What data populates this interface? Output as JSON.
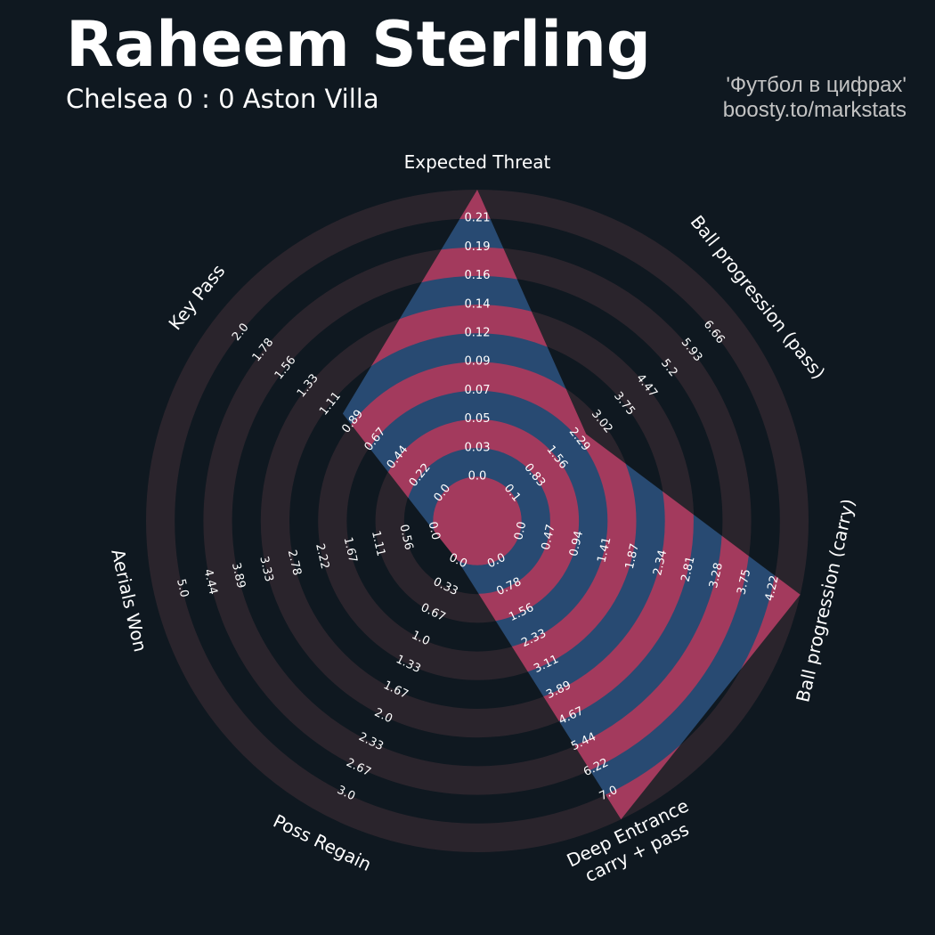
{
  "header": {
    "title": "Raheem Sterling",
    "subtitle": "Chelsea 0 : 0 Aston Villa",
    "credit_line1": "'Футбол в цифрах'",
    "credit_line2": "boosty.to/markstats"
  },
  "colors": {
    "background": "#0f1820",
    "ring_dark": "#2a242c",
    "fill_blue": "#284a72",
    "fill_red": "#a33a5d",
    "text": "#ffffff"
  },
  "chart_data": {
    "type": "radar",
    "title": "Raheem Sterling",
    "subtitle": "Chelsea 0 : 0 Aston Villa",
    "rings": 10,
    "axes": [
      {
        "label": "Expected Threat",
        "min": 0.0,
        "max": 0.21,
        "value": 0.21,
        "ticks": [
          "0.0",
          "0.03",
          "0.05",
          "0.07",
          "0.09",
          "0.12",
          "0.14",
          "0.16",
          "0.19",
          "0.21"
        ]
      },
      {
        "label": "Ball progression (pass)",
        "min": 0.0,
        "max": 6.66,
        "value": 2.2,
        "ticks": [
          "0.1",
          "0.83",
          "1.56",
          "2.29",
          "3.02",
          "3.75",
          "4.47",
          "5.2",
          "5.93",
          "6.66"
        ]
      },
      {
        "label": "Ball progression (carry)",
        "min": 0.0,
        "max": 4.22,
        "value": 4.22,
        "ticks": [
          "0.0",
          "0.47",
          "0.94",
          "1.41",
          "1.87",
          "2.34",
          "2.81",
          "3.28",
          "3.75",
          "4.22"
        ]
      },
      {
        "label": "Deep Entrance\ncarry + pass",
        "min": 0.0,
        "max": 7.0,
        "value": 7.0,
        "ticks": [
          "0.0",
          "0.78",
          "1.56",
          "2.33",
          "3.11",
          "3.89",
          "4.67",
          "5.44",
          "6.22",
          "7.0"
        ]
      },
      {
        "label": "Poss Regain",
        "min": 0.0,
        "max": 3.0,
        "value": 0.0,
        "ticks": [
          "0.0",
          "0.33",
          "0.67",
          "1.0",
          "1.33",
          "1.67",
          "2.0",
          "2.33",
          "2.67",
          "3.0"
        ]
      },
      {
        "label": "Aerials Won",
        "min": 0.0,
        "max": 5.0,
        "value": 0.0,
        "ticks": [
          "0.0",
          "0.56",
          "1.11",
          "1.67",
          "2.22",
          "2.78",
          "3.33",
          "3.89",
          "4.44",
          "5.0"
        ]
      },
      {
        "label": "Key Pass",
        "min": 0.0,
        "max": 2.0,
        "value": 0.89,
        "ticks": [
          "0.0",
          "0.22",
          "0.44",
          "0.67",
          "0.89",
          "1.11",
          "1.33",
          "1.56",
          "1.78",
          "2.0"
        ]
      }
    ]
  }
}
